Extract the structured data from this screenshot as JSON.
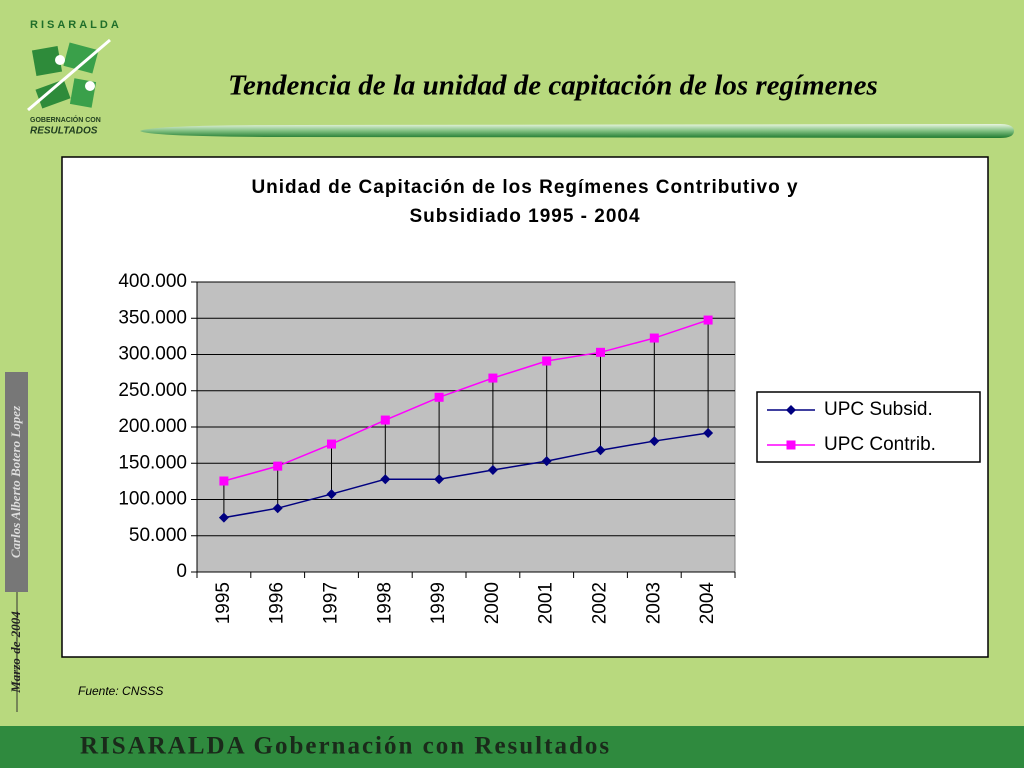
{
  "logo": {
    "name": "RISARALDA",
    "motto_1": "GOBERNACIÓN CON",
    "motto_2": "RESULTADOS"
  },
  "slide_title": "Tendencia de la unidad de capitación de los regímenes",
  "side_text": {
    "date": "Marzo-de-2004",
    "author": "Carlos Alberto Botero Lopez"
  },
  "source": "Fuente:  CNSSS",
  "footer": "RISARALDA Gobernación con Resultados",
  "chart_data": {
    "type": "line",
    "title": [
      "Unidad de Capitación de los Regímenes Contributivo y",
      "Subsidiado 1995 - 2004"
    ],
    "categories": [
      "1995",
      "1996",
      "1997",
      "1998",
      "1999",
      "2000",
      "2001",
      "2002",
      "2003",
      "2004"
    ],
    "series": [
      {
        "name": "UPC Subsid.",
        "color": "#000080",
        "marker": "diamond",
        "values": [
          75000,
          88000,
          107500,
          128000,
          128000,
          140700,
          153000,
          168000,
          180600,
          191700
        ]
      },
      {
        "name": "UPC Contrib.",
        "color": "#ff00ff",
        "marker": "square",
        "values": [
          125500,
          146000,
          176500,
          209600,
          241000,
          267500,
          291000,
          303000,
          322700,
          347500
        ]
      }
    ],
    "ylim": [
      0,
      400000
    ],
    "yticks": [
      0,
      {
        "value": 50000,
        "label": "50.000"
      },
      {
        "value": 100000,
        "label": "100.000"
      },
      {
        "value": 150000,
        "label": "150.000"
      },
      {
        "value": 200000,
        "label": "200.000"
      },
      {
        "value": 250000,
        "label": "250.000"
      },
      {
        "value": 300000,
        "label": "300.000"
      },
      {
        "value": 350000,
        "label": "350.000"
      },
      {
        "value": 400000,
        "label": "400.000"
      }
    ],
    "grid": true,
    "drop_lines": true,
    "legend": "right"
  }
}
